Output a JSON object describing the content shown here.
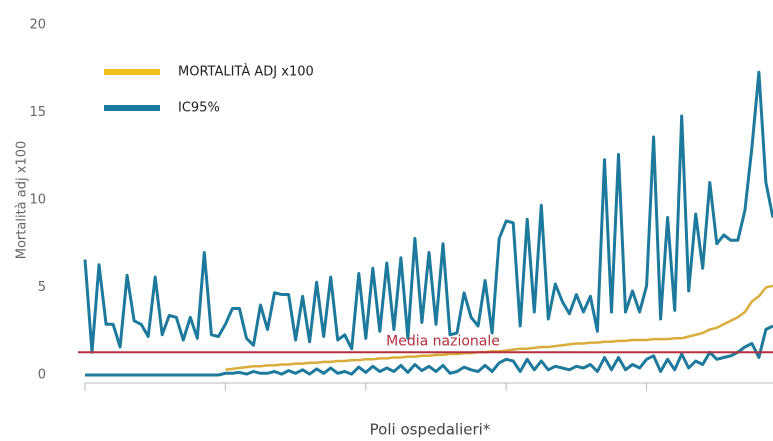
{
  "chart_data": {
    "type": "line",
    "y_label": "Mortalità adj x100",
    "x_label": "Poli ospedalieri*",
    "x": [
      0,
      1,
      2,
      3,
      4,
      5,
      6,
      7,
      8,
      9,
      10,
      11,
      12,
      13,
      14,
      15,
      16,
      17,
      18,
      19,
      20,
      21,
      22,
      23,
      24,
      25,
      26,
      27,
      28,
      29,
      30,
      31,
      32,
      33,
      34,
      35,
      36,
      37,
      38,
      39,
      40,
      41,
      42,
      43,
      44,
      45,
      46,
      47,
      48,
      49,
      50,
      51,
      52,
      53,
      54,
      55,
      56,
      57,
      58,
      59,
      60,
      61,
      62,
      63,
      64,
      65,
      66,
      67,
      68,
      69,
      70,
      71,
      72,
      73,
      74,
      75,
      76,
      77,
      78,
      79,
      80,
      81,
      82,
      83,
      84,
      85,
      86,
      87,
      88,
      89,
      90,
      91,
      92,
      93,
      94,
      95,
      96,
      97,
      98
    ],
    "xlim": [
      0,
      99
    ],
    "xticks": [
      0,
      20,
      40,
      60,
      80
    ],
    "ylim": [
      0,
      20
    ],
    "yticks": [
      0,
      5,
      10,
      15,
      20
    ],
    "grid": false,
    "legend": "top-left",
    "series": [
      {
        "name": "MORTALITÀ ADJ x100",
        "color": "#d9ad3c",
        "legend_color": "#f2c21b",
        "values": [
          null,
          null,
          null,
          null,
          null,
          null,
          null,
          null,
          null,
          null,
          null,
          null,
          null,
          null,
          null,
          null,
          null,
          null,
          null,
          null,
          0.3,
          0.35,
          0.4,
          0.45,
          0.5,
          0.5,
          0.55,
          0.55,
          0.6,
          0.6,
          0.65,
          0.65,
          0.7,
          0.7,
          0.75,
          0.75,
          0.8,
          0.8,
          0.85,
          0.85,
          0.9,
          0.9,
          0.95,
          0.95,
          1.0,
          1.0,
          1.05,
          1.05,
          1.1,
          1.1,
          1.15,
          1.15,
          1.2,
          1.2,
          1.25,
          1.25,
          1.3,
          1.3,
          1.35,
          1.35,
          1.4,
          1.45,
          1.5,
          1.5,
          1.55,
          1.6,
          1.6,
          1.65,
          1.7,
          1.75,
          1.8,
          1.8,
          1.85,
          1.85,
          1.9,
          1.9,
          1.95,
          1.95,
          2.0,
          2.0,
          2.0,
          2.05,
          2.05,
          2.05,
          2.1,
          2.1,
          2.2,
          2.3,
          2.4,
          2.6,
          2.7,
          2.9,
          3.1,
          3.3,
          3.6,
          4.2,
          4.5,
          5.0,
          5.1
        ]
      },
      {
        "name": "IC95%",
        "color": "#1d7a9c",
        "values": [
          6.6,
          1.3,
          6.3,
          2.9,
          2.9,
          1.6,
          5.7,
          3.1,
          2.9,
          2.2,
          5.6,
          2.3,
          3.4,
          3.3,
          2.0,
          3.3,
          2.1,
          7.0,
          2.3,
          2.2,
          2.9,
          3.8,
          3.8,
          2.1,
          1.7,
          4.0,
          2.6,
          4.7,
          4.6,
          4.6,
          2.0,
          4.5,
          1.9,
          5.3,
          2.2,
          5.6,
          2.0,
          2.3,
          1.5,
          5.8,
          2.1,
          6.1,
          2.5,
          6.4,
          2.6,
          6.7,
          2.1,
          7.8,
          3.0,
          7.0,
          2.9,
          7.5,
          2.3,
          2.4,
          4.7,
          3.3,
          2.8,
          5.4,
          2.4,
          7.8,
          8.8,
          8.7,
          2.8,
          8.9,
          3.6,
          9.7,
          3.2,
          5.2,
          4.2,
          3.5,
          4.6,
          3.6,
          4.5,
          2.5,
          12.3,
          3.6,
          12.6,
          3.6,
          4.8,
          3.6,
          5.1,
          13.6,
          3.2,
          9.0,
          3.7,
          14.8,
          4.8,
          9.2,
          6.1,
          11.0,
          7.5,
          8.0,
          7.7,
          7.7,
          9.4,
          13.0,
          17.3,
          11.0,
          9.0
        ]
      },
      {
        "color": "#1d7a9c",
        "values": [
          0,
          0,
          0,
          0,
          0,
          0,
          0,
          0,
          0,
          0,
          0,
          0,
          0,
          0,
          0,
          0,
          0,
          0,
          0,
          0,
          0.1,
          0.1,
          0.15,
          0.05,
          0.2,
          0.1,
          0.1,
          0.2,
          0.05,
          0.25,
          0.1,
          0.3,
          0.05,
          0.35,
          0.1,
          0.4,
          0.1,
          0.2,
          0.05,
          0.45,
          0.15,
          0.5,
          0.2,
          0.4,
          0.2,
          0.55,
          0.15,
          0.6,
          0.25,
          0.5,
          0.2,
          0.55,
          0.1,
          0.2,
          0.45,
          0.3,
          0.2,
          0.55,
          0.2,
          0.7,
          0.9,
          0.8,
          0.2,
          0.9,
          0.3,
          0.8,
          0.3,
          0.5,
          0.4,
          0.3,
          0.5,
          0.4,
          0.6,
          0.2,
          1.0,
          0.3,
          1.0,
          0.3,
          0.6,
          0.4,
          0.9,
          1.1,
          0.2,
          0.9,
          0.3,
          1.2,
          0.4,
          0.8,
          0.6,
          1.3,
          0.9,
          1.0,
          1.1,
          1.3,
          1.6,
          1.8,
          1.0,
          2.6,
          2.8
        ]
      }
    ],
    "reference_line": {
      "value": 1.3,
      "label": "Media nazionale",
      "color": "#b3303f"
    }
  }
}
